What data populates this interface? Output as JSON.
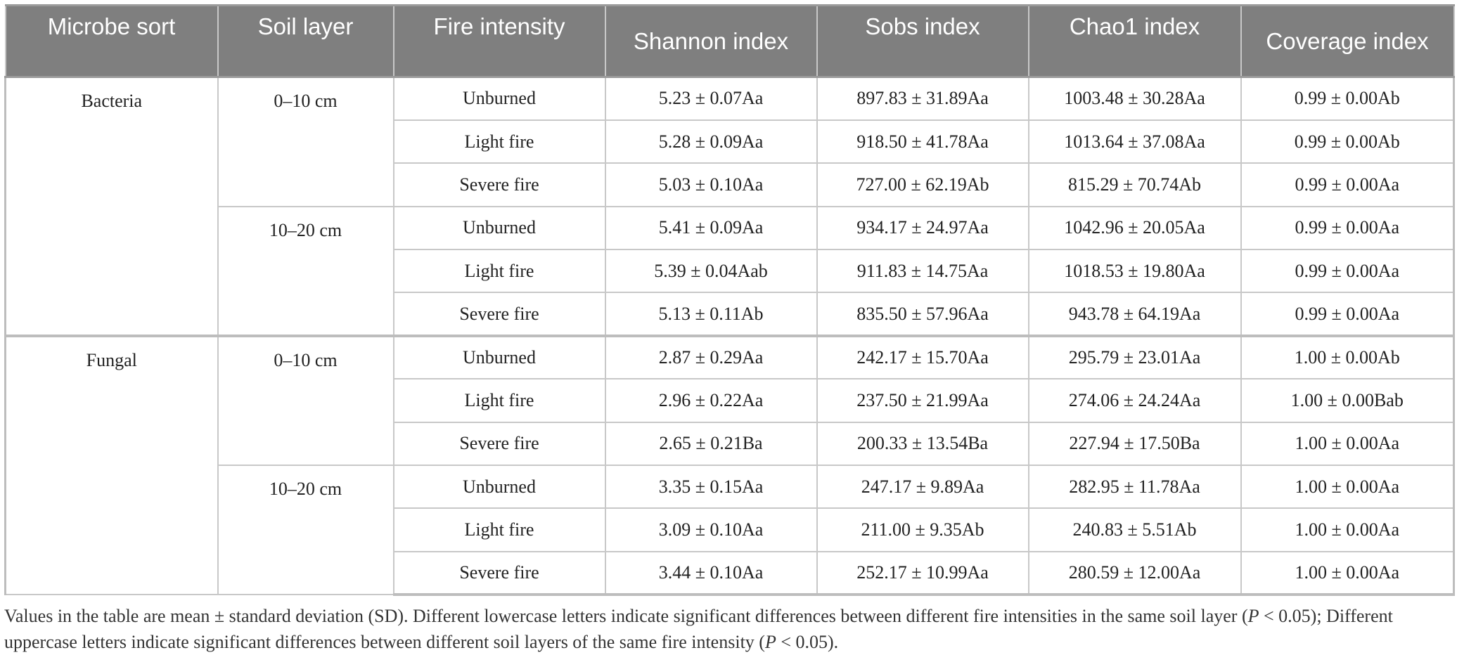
{
  "table": {
    "headers": [
      "Microbe sort",
      "Soil layer",
      "Fire intensity",
      "Shannon index",
      "Sobs index",
      "Chao1 index",
      "Coverage index"
    ],
    "groups": [
      {
        "microbe": "Bacteria",
        "layers": [
          {
            "layer": "0–10 cm",
            "rows": [
              {
                "fire": "Unburned",
                "shannon": "5.23 ± 0.07Aa",
                "sobs": "897.83 ± 31.89Aa",
                "chao1": "1003.48 ± 30.28Aa",
                "coverage": "0.99 ± 0.00Ab"
              },
              {
                "fire": "Light fire",
                "shannon": "5.28 ± 0.09Aa",
                "sobs": "918.50 ± 41.78Aa",
                "chao1": "1013.64 ± 37.08Aa",
                "coverage": "0.99 ± 0.00Ab"
              },
              {
                "fire": "Severe fire",
                "shannon": "5.03 ± 0.10Aa",
                "sobs": "727.00 ± 62.19Ab",
                "chao1": "815.29 ± 70.74Ab",
                "coverage": "0.99 ± 0.00Aa"
              }
            ]
          },
          {
            "layer": "10–20 cm",
            "rows": [
              {
                "fire": "Unburned",
                "shannon": "5.41 ± 0.09Aa",
                "sobs": "934.17 ± 24.97Aa",
                "chao1": "1042.96 ± 20.05Aa",
                "coverage": "0.99 ± 0.00Aa"
              },
              {
                "fire": "Light fire",
                "shannon": "5.39 ± 0.04Aab",
                "sobs": "911.83 ± 14.75Aa",
                "chao1": "1018.53 ± 19.80Aa",
                "coverage": "0.99 ± 0.00Aa"
              },
              {
                "fire": "Severe fire",
                "shannon": "5.13 ± 0.11Ab",
                "sobs": "835.50 ± 57.96Aa",
                "chao1": "943.78 ± 64.19Aa",
                "coverage": "0.99 ± 0.00Aa"
              }
            ]
          }
        ]
      },
      {
        "microbe": "Fungal",
        "layers": [
          {
            "layer": "0–10 cm",
            "rows": [
              {
                "fire": "Unburned",
                "shannon": "2.87 ± 0.29Aa",
                "sobs": "242.17 ± 15.70Aa",
                "chao1": "295.79 ± 23.01Aa",
                "coverage": "1.00 ± 0.00Ab"
              },
              {
                "fire": "Light fire",
                "shannon": "2.96 ± 0.22Aa",
                "sobs": "237.50 ± 21.99Aa",
                "chao1": "274.06 ± 24.24Aa",
                "coverage": "1.00 ± 0.00Bab"
              },
              {
                "fire": "Severe fire",
                "shannon": "2.65 ± 0.21Ba",
                "sobs": "200.33 ± 13.54Ba",
                "chao1": "227.94 ± 17.50Ba",
                "coverage": "1.00 ± 0.00Aa"
              }
            ]
          },
          {
            "layer": "10–20 cm",
            "rows": [
              {
                "fire": "Unburned",
                "shannon": "3.35 ± 0.15Aa",
                "sobs": "247.17 ± 9.89Aa",
                "chao1": "282.95 ± 11.78Aa",
                "coverage": "1.00 ± 0.00Aa"
              },
              {
                "fire": "Light fire",
                "shannon": "3.09 ± 0.10Aa",
                "sobs": "211.00 ± 9.35Ab",
                "chao1": "240.83 ± 5.51Ab",
                "coverage": "1.00 ± 0.00Aa"
              },
              {
                "fire": "Severe fire",
                "shannon": "3.44 ± 0.10Aa",
                "sobs": "252.17 ± 10.99Aa",
                "chao1": "280.59 ± 12.00Aa",
                "coverage": "1.00 ± 0.00Aa"
              }
            ]
          }
        ]
      }
    ]
  },
  "footnote": {
    "text_a": "Values in the table are mean ± standard deviation (SD). Different lowercase letters indicate significant differences between different fire intensities in the same soil layer (",
    "p_symbol": "P",
    "text_b": " < 0.05); Different uppercase letters indicate significant differences between different soil layers of the same fire intensity (",
    "p_symbol_2": "P",
    "text_c": " < 0.05)."
  },
  "colors": {
    "header_bg": "#7f7f7f",
    "header_text": "#ffffff",
    "grid": "#c8c8c8"
  }
}
